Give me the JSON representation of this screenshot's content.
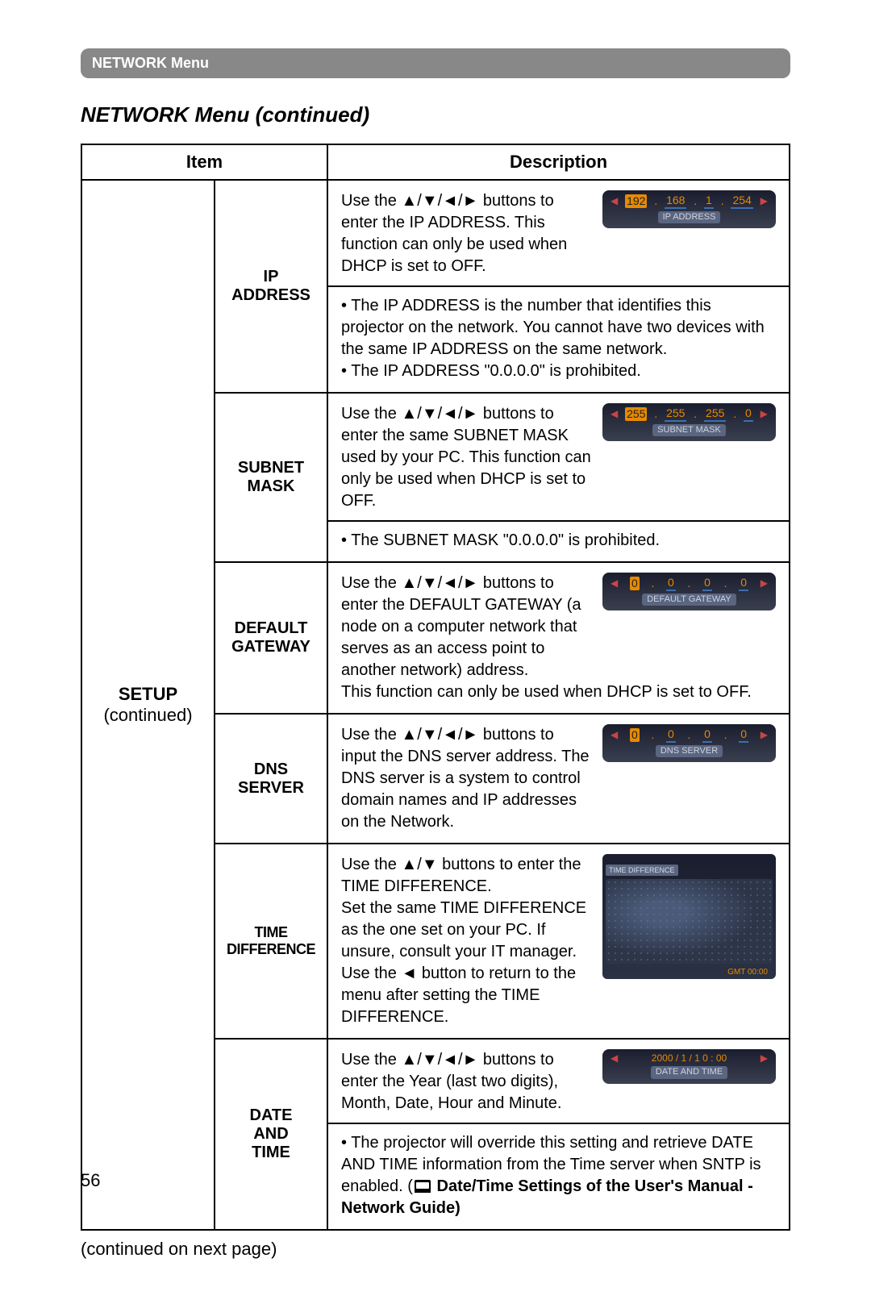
{
  "header": {
    "menu_label": "NETWORK Menu",
    "title": "NETWORK Menu (continued)"
  },
  "table": {
    "col_item": "Item",
    "col_desc": "Description",
    "setup_label": "SETUP",
    "setup_cont": "(continued)"
  },
  "rows": {
    "ip": {
      "label1": "IP",
      "label2": "ADDRESS",
      "p1": "Use the ▲/▼/◄/► buttons to enter the IP ADDRESS. This function can only be used when DHCP is set to OFF.",
      "p2": "• The IP ADDRESS is the number that identifies this projector on the network. You cannot have two devices with the same IP ADDRESS on the same network.",
      "p3": "• The IP ADDRESS \"0.0.0.0\" is prohibited.",
      "badge": {
        "a": "192",
        "b": "168",
        "c": "1",
        "d": "254",
        "title": "IP ADDRESS"
      }
    },
    "subnet": {
      "label1": "SUBNET",
      "label2": "MASK",
      "p1": "Use the ▲/▼/◄/► buttons to enter the same SUBNET MASK used by your PC. This function can only be used when DHCP is set to OFF.",
      "p2": "• The SUBNET MASK \"0.0.0.0\" is prohibited.",
      "badge": {
        "a": "255",
        "b": "255",
        "c": "255",
        "d": "0",
        "title": "SUBNET MASK"
      }
    },
    "gateway": {
      "label1": "DEFAULT",
      "label2": "GATEWAY",
      "p1": "Use the ▲/▼/◄/► buttons to enter the DEFAULT GATEWAY (a node on a computer network that serves as an access point to another network) address.",
      "p2": "This function can only be used when DHCP is set to OFF.",
      "badge": {
        "a": "0",
        "b": "0",
        "c": "0",
        "d": "0",
        "title": "DEFAULT GATEWAY"
      }
    },
    "dns": {
      "label1": "DNS",
      "label2": "SERVER",
      "p1": "Use the ▲/▼/◄/► buttons to input the DNS server address. The DNS server is a system to control domain names and IP addresses on the Network.",
      "badge": {
        "a": "0",
        "b": "0",
        "c": "0",
        "d": "0",
        "title": "DNS SERVER"
      }
    },
    "time": {
      "label1": "TIME",
      "label2": "DIFFERENCE",
      "p1": "Use the ▲/▼ buttons to enter the TIME DIFFERENCE.",
      "p2": "Set the same TIME DIFFERENCE as the one set on your PC. If unsure, consult your IT manager. Use the ◄ button to return to the menu after setting the TIME DIFFERENCE.",
      "badge": {
        "title": "TIME DIFFERENCE",
        "foot": "GMT 00:00"
      }
    },
    "date": {
      "label1": "DATE",
      "label2": "AND",
      "label3": "TIME",
      "p1": "Use the ▲/▼/◄/► buttons to enter the Year (last two digits), Month, Date, Hour and Minute.",
      "p2a": "• The projector will override this setting and retrieve DATE AND TIME information from the Time server when SNTP is enabled. (",
      "p2b": " Date/Time Settings of the User's Manual - Network Guide)",
      "badge": {
        "val": "2000 /  1  /  1     0  :  00",
        "title": "DATE AND TIME"
      }
    }
  },
  "footer": {
    "continued": "(continued on next page)",
    "page": "56"
  }
}
